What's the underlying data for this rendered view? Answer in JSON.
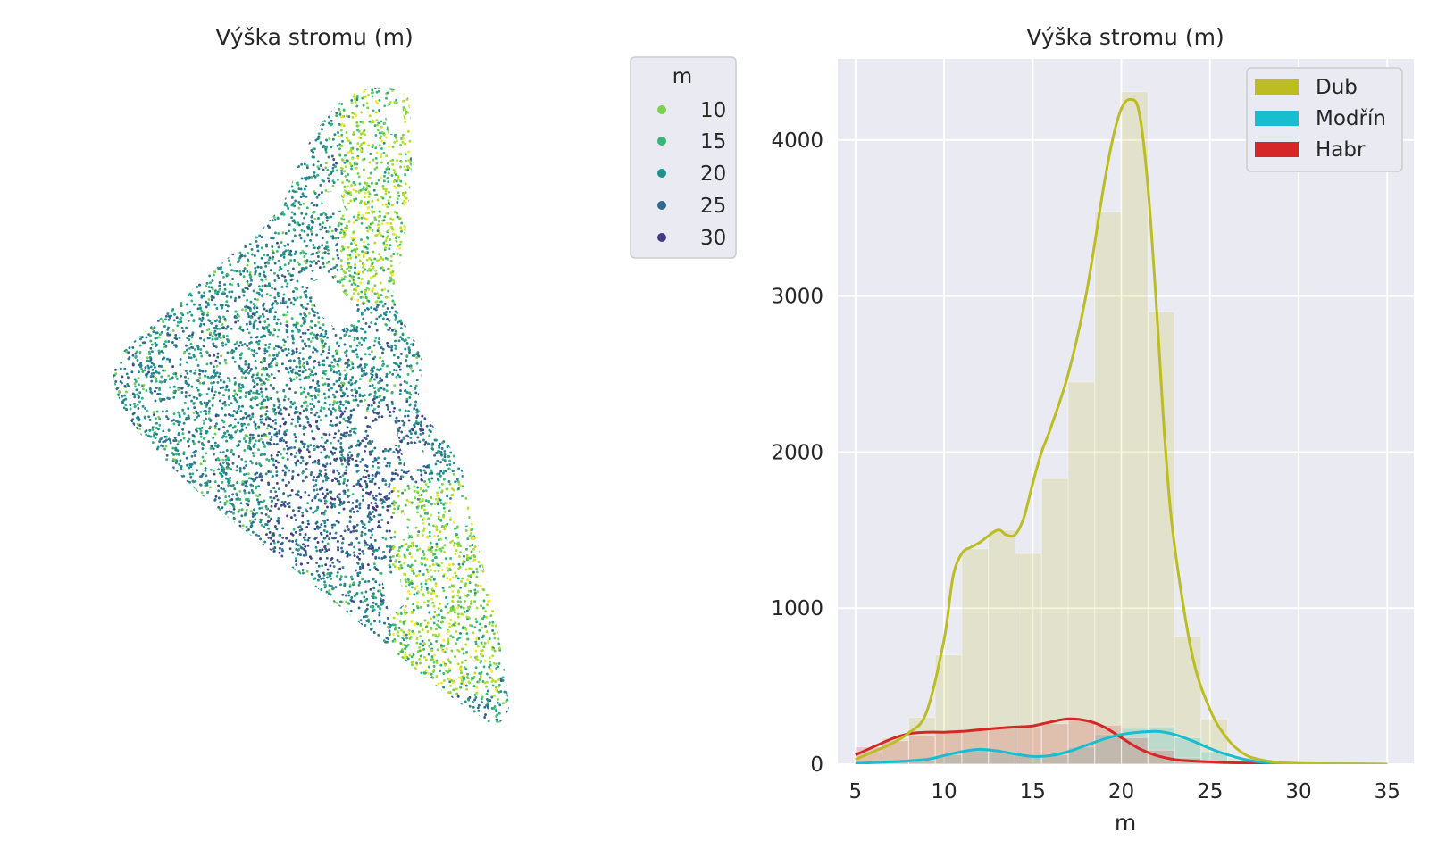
{
  "chart_data": [
    {
      "type": "scatter",
      "title": "Výška stromu (m)",
      "xlabel": "",
      "ylabel": "",
      "axes_visible": false,
      "colormap": "viridis",
      "color_variable": "m",
      "color_range": [
        8,
        32
      ],
      "legend": {
        "title": "m",
        "position": "outside-right",
        "entries": [
          {
            "label": "10",
            "value": 10,
            "color": "#7ad151"
          },
          {
            "label": "15",
            "value": 15,
            "color": "#35b779"
          },
          {
            "label": "20",
            "value": 20,
            "color": "#21908d"
          },
          {
            "label": "25",
            "value": 25,
            "color": "#31688e"
          },
          {
            "label": "30",
            "value": 30,
            "color": "#443a83"
          }
        ]
      },
      "description_of_points": "Dense point cloud of tree positions coloured by tree height; roughly 20,000+ points, individual coordinates not readable from image"
    },
    {
      "type": "histogram",
      "title": "Výška stromu (m)",
      "xlabel": "m",
      "ylabel": "",
      "xlim": [
        4,
        36.5
      ],
      "ylim": [
        0,
        4520
      ],
      "xticks": [
        5,
        10,
        15,
        20,
        25,
        30,
        35
      ],
      "yticks": [
        0,
        1000,
        2000,
        3000,
        4000
      ],
      "grid": true,
      "background": "#eaeaf2",
      "legend": {
        "position": "top-right"
      },
      "kde": true,
      "bin_width": 1.5,
      "series": [
        {
          "name": "Dub",
          "color": "#bcbd22",
          "bin_edges": [
            5,
            6.5,
            8,
            9.5,
            11,
            12.5,
            14,
            15.5,
            17,
            18.5,
            20,
            21.5,
            23,
            24.5,
            26,
            27.5
          ],
          "counts": [
            80,
            170,
            300,
            700,
            1380,
            1500,
            1350,
            1830,
            2450,
            3540,
            4310,
            2900,
            820,
            290,
            40
          ],
          "kde_x": [
            5,
            6,
            7,
            8,
            9,
            10,
            10.5,
            11,
            11.5,
            12,
            13,
            13.5,
            14,
            14.5,
            15,
            15.5,
            16,
            17,
            18,
            19,
            19.5,
            20,
            20.5,
            21,
            21.5,
            22,
            22.5,
            23,
            24,
            25,
            26,
            27,
            28,
            29,
            30,
            32,
            35
          ],
          "kde_y": [
            30,
            80,
            130,
            200,
            330,
            800,
            1200,
            1350,
            1390,
            1420,
            1500,
            1470,
            1470,
            1580,
            1800,
            2000,
            2150,
            2500,
            3000,
            3700,
            4000,
            4200,
            4260,
            4180,
            3700,
            2900,
            2000,
            1400,
            700,
            350,
            160,
            60,
            25,
            10,
            5,
            2,
            0
          ]
        },
        {
          "name": "Modřín",
          "color": "#17becf",
          "bin_edges": [
            5,
            6.5,
            8,
            9.5,
            11,
            12.5,
            14,
            15.5,
            17,
            18.5,
            20,
            21.5,
            23,
            24.5,
            26,
            27.5
          ],
          "counts": [
            10,
            15,
            25,
            60,
            90,
            80,
            60,
            60,
            110,
            190,
            230,
            240,
            170,
            80,
            25
          ],
          "kde_x": [
            5,
            7,
            9,
            10,
            11,
            12,
            13,
            14,
            15,
            16,
            17,
            18,
            19,
            20,
            21,
            22,
            23,
            24,
            25,
            26,
            27,
            28,
            30,
            35
          ],
          "kde_y": [
            5,
            15,
            30,
            55,
            80,
            95,
            85,
            65,
            50,
            55,
            80,
            120,
            160,
            190,
            205,
            210,
            190,
            150,
            100,
            60,
            30,
            12,
            3,
            0
          ]
        },
        {
          "name": "Habr",
          "color": "#d62728",
          "bin_edges": [
            5,
            6.5,
            8,
            9.5,
            11,
            12.5,
            14,
            15.5,
            17,
            18.5,
            20,
            21.5,
            23,
            24.5,
            26,
            27.5
          ],
          "counts": [
            110,
            150,
            180,
            210,
            220,
            230,
            240,
            260,
            280,
            250,
            170,
            90,
            40,
            20,
            10
          ],
          "kde_x": [
            5,
            6,
            7,
            8,
            9,
            10,
            11,
            12,
            13,
            14,
            15,
            16,
            17,
            18,
            19,
            20,
            21,
            22,
            23,
            24,
            25,
            26,
            28,
            30,
            35
          ],
          "kde_y": [
            60,
            110,
            160,
            195,
            205,
            205,
            210,
            220,
            230,
            238,
            245,
            270,
            290,
            280,
            240,
            170,
            100,
            55,
            30,
            20,
            15,
            10,
            5,
            2,
            0
          ]
        }
      ]
    }
  ]
}
